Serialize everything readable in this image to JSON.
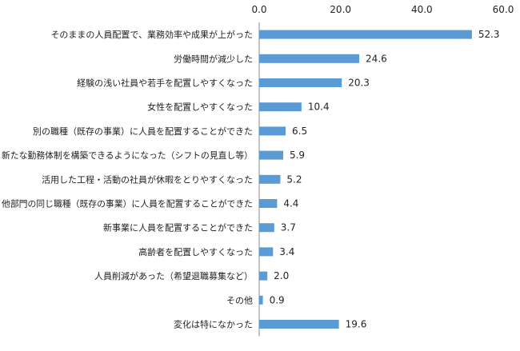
{
  "chart_data": {
    "type": "bar",
    "orientation": "horizontal",
    "title": "",
    "xlabel": "",
    "ylabel": "",
    "xlim": [
      0,
      60
    ],
    "ticks": [
      0,
      20,
      40,
      60
    ],
    "tick_labels": [
      "0.0",
      "20.0",
      "40.0",
      "60.0"
    ],
    "axis_position": "top",
    "grid": false,
    "bar_color": "#5b9bd5",
    "categories": [
      "そのままの人員配置で、業務効率や成果が上がった",
      "労働時間が減少した",
      "経験の浅い社員や若手を配置しやすくなった",
      "女性を配置しやすくなった",
      "別の職種（既存の事業）に人員を配置することができた",
      "新たな勤務体制を構築できるようになった（シフトの見直し等）",
      "活用した工程・活動の社員が休暇をとりやすくなった",
      "他部門の同じ職種（既存の事業）に人員を配置することができた",
      "新事業に人員を配置することができた",
      "高齢者を配置しやすくなった",
      "人員削減があった（希望退職募集など）",
      "その他",
      "変化は特になかった"
    ],
    "values": [
      52.3,
      24.6,
      20.3,
      10.4,
      6.5,
      5.9,
      5.2,
      4.4,
      3.7,
      3.4,
      2.0,
      0.9,
      19.6
    ],
    "value_labels": [
      "52.3",
      "24.6",
      "20.3",
      "10.4",
      "6.5",
      "5.9",
      "5.2",
      "4.4",
      "3.7",
      "3.4",
      "2.0",
      "0.9",
      "19.6"
    ]
  }
}
